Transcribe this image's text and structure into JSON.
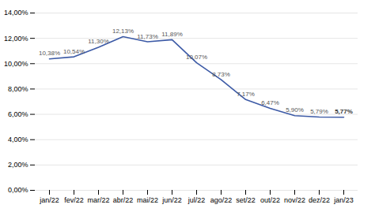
{
  "chart_data": {
    "type": "line",
    "categories": [
      "jan/22",
      "fev/22",
      "mar/22",
      "abr/22",
      "mai/22",
      "jun/22",
      "jul/22",
      "ago/22",
      "set/22",
      "out/22",
      "nov/22",
      "dez/22",
      "jan/23"
    ],
    "values": [
      10.38,
      10.54,
      11.3,
      12.13,
      11.73,
      11.89,
      10.07,
      8.73,
      7.17,
      6.47,
      5.9,
      5.79,
      5.77
    ],
    "value_labels": [
      "10,38%",
      "10,54%",
      "11,30%",
      "12,13%",
      "11,73%",
      "11,89%",
      "10,07%",
      "8,73%",
      "7,17%",
      "6,47%",
      "5,90%",
      "5,79%",
      "5,77%"
    ],
    "color": "#3C5AA6",
    "ylim": [
      0,
      14
    ],
    "yticks": [
      {
        "value": 0,
        "label": "0,00%"
      },
      {
        "value": 2,
        "label": "2,00%"
      },
      {
        "value": 4,
        "label": "4,00%"
      },
      {
        "value": 6,
        "label": "6,00%"
      },
      {
        "value": 8,
        "label": "8,00%"
      },
      {
        "value": 10,
        "label": "10,00%"
      },
      {
        "value": 12,
        "label": "12,00%"
      },
      {
        "value": 14,
        "label": "14,00%"
      }
    ],
    "grid": true,
    "data_labels": true
  }
}
